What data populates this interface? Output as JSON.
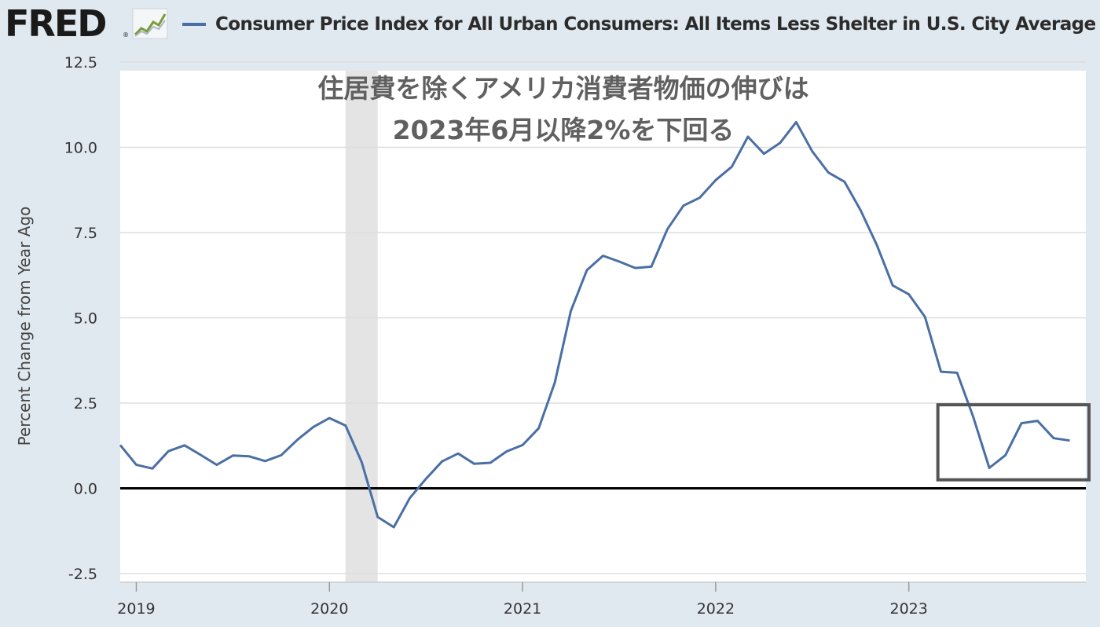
{
  "header": {
    "logo_text": "FRED",
    "logo_mark": "®",
    "graph_icon": "line-graph-icon",
    "legend_label": "Consumer Price Index for All Urban Consumers: All Items Less Shelter in U.S. City Average",
    "legend_color": "#4a6fa5"
  },
  "chart_data": {
    "type": "line",
    "ylabel": "Percent Change from Year Ago",
    "ylim": [
      -2.5,
      12.5
    ],
    "yticks": [
      12.5,
      10.0,
      7.5,
      5.0,
      2.5,
      0.0,
      -2.5
    ],
    "ytick_labels": [
      "12.5",
      "10.0",
      "7.5",
      "5.0",
      "2.5",
      "0.0",
      "-2.5"
    ],
    "xlim": [
      "2018-12",
      "2023-12"
    ],
    "xticks": [
      "2019",
      "2020",
      "2021",
      "2022",
      "2023"
    ],
    "grid": true,
    "line_color": "#4a6fa5",
    "zero_line": true,
    "recession_shading": {
      "start": "2020-02",
      "end": "2020-04"
    },
    "annotation": {
      "lines": [
        "住居費を除くアメリカ消費者物価の伸びは",
        "2023年6月以降2%を下回る"
      ]
    },
    "highlight_box": {
      "x_start": "2023-03",
      "x_end": "2023-12",
      "y_min": 0.25,
      "y_max": 2.45
    },
    "series": [
      {
        "x": [
          "2018-12",
          "2019-01",
          "2019-02",
          "2019-03",
          "2019-04",
          "2019-05",
          "2019-06",
          "2019-07",
          "2019-08",
          "2019-09",
          "2019-10",
          "2019-11",
          "2019-12",
          "2020-01",
          "2020-02",
          "2020-03",
          "2020-04",
          "2020-05",
          "2020-06",
          "2020-07",
          "2020-08",
          "2020-09",
          "2020-10",
          "2020-11",
          "2020-12",
          "2021-01",
          "2021-02",
          "2021-03",
          "2021-04",
          "2021-05",
          "2021-06",
          "2021-07",
          "2021-08",
          "2021-09",
          "2021-10",
          "2021-11",
          "2021-12",
          "2022-01",
          "2022-02",
          "2022-03",
          "2022-04",
          "2022-05",
          "2022-06",
          "2022-07",
          "2022-08",
          "2022-09",
          "2022-10",
          "2022-11",
          "2022-12",
          "2023-01",
          "2023-02",
          "2023-03",
          "2023-04",
          "2023-05",
          "2023-06",
          "2023-07",
          "2023-08",
          "2023-09",
          "2023-10",
          "2023-11"
        ],
        "values": [
          1.27,
          0.69,
          0.58,
          1.09,
          1.26,
          0.98,
          0.69,
          0.96,
          0.94,
          0.8,
          0.97,
          1.42,
          1.8,
          2.06,
          1.84,
          0.77,
          -0.84,
          -1.14,
          -0.28,
          0.28,
          0.79,
          1.02,
          0.72,
          0.75,
          1.08,
          1.27,
          1.76,
          3.1,
          5.2,
          6.4,
          6.82,
          6.65,
          6.46,
          6.5,
          7.6,
          8.29,
          8.52,
          9.04,
          9.43,
          10.31,
          9.81,
          10.13,
          10.74,
          9.88,
          9.26,
          8.99,
          8.16,
          7.15,
          5.95,
          5.69,
          5.03,
          3.42,
          3.39,
          2.1,
          0.6,
          0.97,
          1.91,
          1.98,
          1.47,
          1.4
        ]
      }
    ]
  }
}
